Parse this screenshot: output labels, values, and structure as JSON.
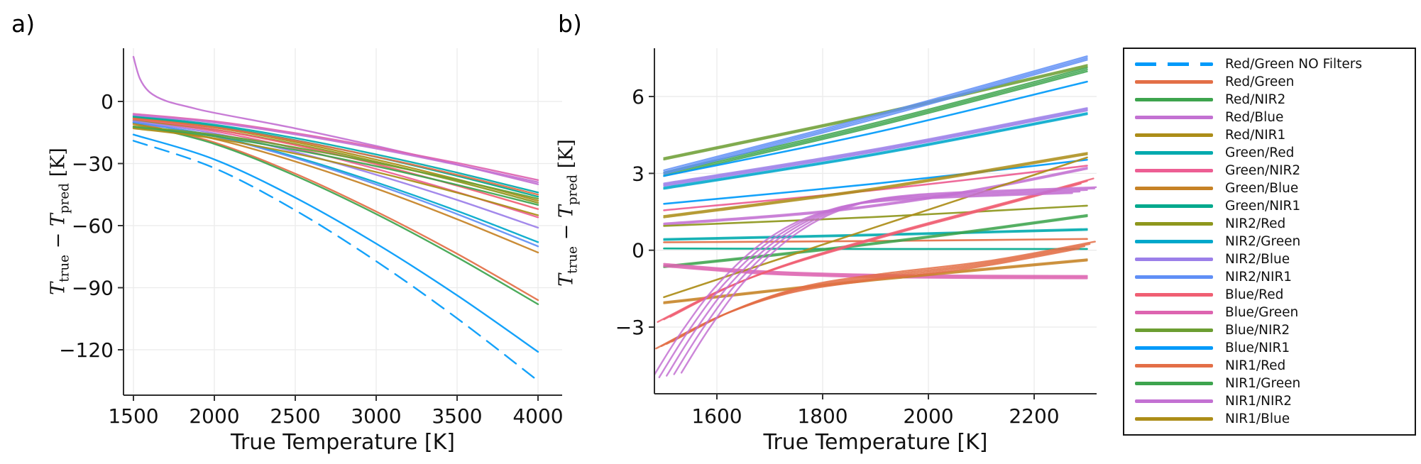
{
  "figure": {
    "panel_a_label": "a)",
    "panel_b_label": "b)",
    "background": "#ffffff",
    "grid_color": "#ebebeb",
    "spine_color": "#2e2e2e",
    "tick_color": "#333333"
  },
  "ylabel_parts": {
    "T1": "T",
    "sub1": "true",
    "op": " − ",
    "T2": "T",
    "sub2": "pred",
    "unit": " [K]"
  },
  "legend": {
    "items": [
      {
        "label": "Red/Green NO Filters",
        "color": "#009AFA",
        "dashed": true
      },
      {
        "label": "Red/Green",
        "color": "#E36F47",
        "dashed": false
      },
      {
        "label": "Red/NIR2",
        "color": "#3DA44E",
        "dashed": false
      },
      {
        "label": "Red/Blue",
        "color": "#C371D2",
        "dashed": false
      },
      {
        "label": "Red/NIR1",
        "color": "#AC8D18",
        "dashed": false
      },
      {
        "label": "Green/Red",
        "color": "#00AAAE",
        "dashed": false
      },
      {
        "label": "Green/NIR2",
        "color": "#ED5E93",
        "dashed": false
      },
      {
        "label": "Green/Blue",
        "color": "#C68225",
        "dashed": false
      },
      {
        "label": "Green/NIR1",
        "color": "#00A98D",
        "dashed": false
      },
      {
        "label": "NIR2/Red",
        "color": "#8E971D",
        "dashed": false
      },
      {
        "label": "NIR2/Green",
        "color": "#00A8CB",
        "dashed": false
      },
      {
        "label": "NIR2/Blue",
        "color": "#9B7FE9",
        "dashed": false
      },
      {
        "label": "NIR2/NIR1",
        "color": "#608FF6",
        "dashed": false
      },
      {
        "label": "Blue/Red",
        "color": "#F05F73",
        "dashed": false
      },
      {
        "label": "Blue/Green",
        "color": "#DD64B0",
        "dashed": false
      },
      {
        "label": "Blue/NIR2",
        "color": "#6C9E32",
        "dashed": false
      },
      {
        "label": "Blue/NIR1",
        "color": "#009AFA",
        "dashed": false
      },
      {
        "label": "NIR1/Red",
        "color": "#E36F47",
        "dashed": false
      },
      {
        "label": "NIR1/Green",
        "color": "#3DA44E",
        "dashed": false
      },
      {
        "label": "NIR1/NIR2",
        "color": "#C371D2",
        "dashed": false
      },
      {
        "label": "NIR1/Blue",
        "color": "#AC8D18",
        "dashed": false
      }
    ]
  },
  "chart_data": [
    {
      "id": "a",
      "type": "line",
      "title": "",
      "xlabel": "True Temperature [K]",
      "ylabel": "T_true − T_pred [K]",
      "xlim": [
        1420,
        4110
      ],
      "ylim": [
        -142,
        26
      ],
      "xticks": [
        1500,
        2000,
        2500,
        3000,
        3500,
        4000
      ],
      "xtick_labels": [
        "1500",
        "2000",
        "2500",
        "3000",
        "3500",
        "4000"
      ],
      "yticks": [
        0,
        -30,
        -60,
        -90,
        -120
      ],
      "ytick_labels": [
        "0",
        "−30",
        "−60",
        "−90",
        "−120"
      ],
      "grid": true,
      "legend_position": "none",
      "x": [
        1500,
        2000,
        2500,
        3000,
        3500,
        4000
      ],
      "series": [
        {
          "name": "Red/Green NO Filters",
          "color": "#009AFA",
          "dash": "20 12",
          "values": [
            -19,
            -32.2,
            -52.6,
            -77.2,
            -104.8,
            -135
          ]
        },
        {
          "name": "Red/Green",
          "color": "#E36F47",
          "values": [
            -10,
            -19.8,
            -34.9,
            -53.2,
            -73.6,
            -96
          ]
        },
        {
          "name": "Red/NIR2",
          "color": "#3DA44E",
          "values": [
            -10.5,
            -20.5,
            -35.9,
            -54.4,
            -75.3,
            -98
          ]
        },
        {
          "name": "Red/Blue",
          "color": "#C371D2",
          "points": [
            [
              1500,
              21.6
            ],
            [
              1540,
              11
            ],
            [
              1600,
              4.5
            ],
            [
              1700,
              0.3
            ],
            [
              1850,
              -2.8
            ],
            [
              2000,
              -5.5
            ],
            [
              2500,
              -13
            ],
            [
              3000,
              -21.5
            ],
            [
              3500,
              -30.5
            ],
            [
              4000,
              -40
            ]
          ]
        },
        {
          "name": "Red/NIR1",
          "color": "#AC8D18",
          "values": [
            -8,
            -12.6,
            -19.6,
            -28.1,
            -37.6,
            -48
          ]
        },
        {
          "name": "Green/Red",
          "color": "#00AAAE",
          "values": [
            -7,
            -11.2,
            -17.7,
            -25.6,
            -34.4,
            -44
          ]
        },
        {
          "name": "Green/NIR2",
          "color": "#ED5E93",
          "values": [
            -9,
            -14.4,
            -22.6,
            -32.6,
            -43.8,
            -56
          ]
        },
        {
          "name": "Green/Blue",
          "color": "#C68225",
          "values": [
            -11,
            -18.1,
            -29,
            -42.1,
            -56.9,
            -73
          ]
        },
        {
          "name": "Green/NIR1",
          "color": "#00A98D",
          "values": [
            -7.5,
            -11.9,
            -18.7,
            -26.8,
            -36,
            -46
          ]
        },
        {
          "name": "NIR2/Red",
          "color": "#8E971D",
          "values": [
            -9,
            -13.6,
            -20.6,
            -29.1,
            -38.6,
            -49
          ]
        },
        {
          "name": "NIR2/Green",
          "color": "#00A8CB",
          "values": [
            -10,
            -16.6,
            -26.8,
            -39.1,
            -52.9,
            -68
          ]
        },
        {
          "name": "NIR2/Blue",
          "color": "#9B7FE9",
          "values": [
            -9.5,
            -15.4,
            -24.4,
            -35.4,
            -47.6,
            -61
          ]
        },
        {
          "name": "NIR2/NIR1",
          "color": "#608FF6",
          "values": [
            -10,
            -16.8,
            -27.4,
            -40.1,
            -54.4,
            -70
          ]
        },
        {
          "name": "Blue/Red",
          "color": "#F05F73",
          "values": [
            -8.5,
            -13.5,
            -21.1,
            -30.3,
            -40.7,
            -52
          ]
        },
        {
          "name": "Blue/Green",
          "color": "#DD64B0",
          "values": [
            -6,
            -9.6,
            -15.3,
            -22.1,
            -29.7,
            -38
          ]
        },
        {
          "name": "Blue/NIR2",
          "color": "#6C9E32",
          "values": [
            -12,
            -16,
            -22.2,
            -29.6,
            -37.9,
            -47
          ]
        },
        {
          "name": "Blue/NIR1",
          "color": "#009AFA",
          "values": [
            -16,
            -28,
            -46.5,
            -68.7,
            -93.7,
            -121
          ]
        },
        {
          "name": "NIR1/Red",
          "color": "#E36F47",
          "values": [
            -8.2,
            -12.4,
            -18.9,
            -26.7,
            -35.4,
            -45
          ]
        },
        {
          "name": "NIR1/Green",
          "color": "#3DA44E",
          "values": [
            -12.5,
            -16.8,
            -23.4,
            -31.3,
            -40.3,
            -50
          ]
        },
        {
          "name": "NIR1/NIR2",
          "color": "#C371D2",
          "values": [
            -6.5,
            -10.2,
            -15.9,
            -22.8,
            -30.6,
            -39
          ]
        },
        {
          "name": "NIR1/Blue",
          "color": "#AC8D18",
          "values": [
            -13,
            -17.8,
            -25.2,
            -34.1,
            -44.1,
            -55
          ]
        }
      ]
    },
    {
      "id": "b",
      "type": "line",
      "title": "",
      "xlabel": "True Temperature [K]",
      "ylabel": "T_true − T_pred [K]",
      "xlim": [
        1482,
        2320
      ],
      "ylim": [
        -5.6,
        7.9
      ],
      "xticks": [
        1600,
        1800,
        2000,
        2200
      ],
      "xtick_labels": [
        "1600",
        "1800",
        "2000",
        "2200"
      ],
      "yticks": [
        6,
        3,
        0,
        -3
      ],
      "ytick_labels": [
        "6",
        "3",
        "0",
        "−3"
      ],
      "grid": true,
      "legend_position": "outside-right",
      "series": [
        {
          "name": "Blue/NIR2",
          "color": "#6C9E32",
          "bundle": 2,
          "spread": 0.06,
          "points": [
            [
              1500,
              3.57
            ],
            [
              1900,
              5.3
            ],
            [
              2300,
              7.2
            ]
          ]
        },
        {
          "name": "Red/NIR2",
          "color": "#3DA44E",
          "bundle": 3,
          "spread": 0.07,
          "points": [
            [
              1500,
              2.97
            ],
            [
              1900,
              4.9
            ],
            [
              2300,
              7.05
            ]
          ]
        },
        {
          "name": "NIR2/NIR1",
          "color": "#608FF6",
          "bundle": 3,
          "spread": 0.07,
          "points": [
            [
              1500,
              3.05
            ],
            [
              1900,
              5.2
            ],
            [
              2300,
              7.5
            ]
          ]
        },
        {
          "name": "Blue/NIR1",
          "color": "#009AFA",
          "points": [
            [
              1500,
              2.9
            ],
            [
              1900,
              4.6
            ],
            [
              2300,
              6.58
            ]
          ]
        },
        {
          "name": "NIR2/Blue",
          "color": "#9B7FE9",
          "bundle": 3,
          "spread": 0.05,
          "points": [
            [
              1500,
              2.56
            ],
            [
              1900,
              3.9
            ],
            [
              2300,
              5.5
            ]
          ]
        },
        {
          "name": "NIR2/Green",
          "color": "#00A8CB",
          "bundle": 2,
          "spread": 0.05,
          "points": [
            [
              1500,
              2.42
            ],
            [
              1900,
              3.75
            ],
            [
              2300,
              5.33
            ]
          ]
        },
        {
          "name": "Red/Green NO Filters",
          "color": "#009AFA",
          "points": [
            [
              1500,
              1.81
            ],
            [
              1900,
              2.6
            ],
            [
              2300,
              3.53
            ]
          ]
        },
        {
          "name": "Green/NIR2",
          "color": "#ED5E93",
          "points": [
            [
              1500,
              1.56
            ],
            [
              1900,
              2.35
            ],
            [
              2300,
              3.3
            ]
          ]
        },
        {
          "name": "Red/NIR1",
          "color": "#AC8D18",
          "bundle": 2,
          "spread": 0.06,
          "points": [
            [
              1500,
              1.31
            ],
            [
              1900,
              2.4
            ],
            [
              2300,
              3.77
            ]
          ]
        },
        {
          "name": "Red/Blue",
          "color": "#C371D2",
          "bundle": 2,
          "spread": 0.05,
          "points": [
            [
              1500,
              1.02
            ],
            [
              1800,
              1.5
            ],
            [
              2050,
              2.2
            ],
            [
              2300,
              3.2
            ]
          ]
        },
        {
          "name": "NIR2/Red",
          "color": "#8E971D",
          "points": [
            [
              1500,
              0.95
            ],
            [
              1900,
              1.3
            ],
            [
              2300,
              1.74
            ]
          ]
        },
        {
          "name": "Green/Red",
          "color": "#00AAAE",
          "bundle": 2,
          "spread": 0.04,
          "points": [
            [
              1500,
              0.42
            ],
            [
              1900,
              0.6
            ],
            [
              2300,
              0.81
            ]
          ]
        },
        {
          "name": "Red/Green",
          "color": "#E36F47",
          "points": [
            [
              1500,
              0.31
            ],
            [
              1900,
              0.36
            ],
            [
              2300,
              0.44
            ]
          ]
        },
        {
          "name": "Green/NIR1",
          "color": "#00A98D",
          "points": [
            [
              1500,
              0.07
            ],
            [
              1900,
              0.05
            ],
            [
              2300,
              0.05
            ]
          ]
        },
        {
          "name": "NIR1/Green",
          "color": "#3DA44E",
          "bundle": 2,
          "spread": 0.05,
          "points": [
            [
              1500,
              -0.64
            ],
            [
              1800,
              0.02
            ],
            [
              2050,
              0.65
            ],
            [
              2300,
              1.35
            ]
          ]
        },
        {
          "name": "Blue/Green",
          "color": "#DD64B0",
          "bundle": 3,
          "spread": 0.05,
          "points": [
            [
              1500,
              -0.58
            ],
            [
              1700,
              -0.88
            ],
            [
              1950,
              -1.02
            ],
            [
              2300,
              -1.05
            ]
          ]
        },
        {
          "name": "NIR1/Blue",
          "color": "#AC8D18",
          "points": [
            [
              1500,
              -1.83
            ],
            [
              1900,
              0.9
            ],
            [
              2300,
              3.62
            ]
          ]
        },
        {
          "name": "Green/Blue",
          "color": "#C68225",
          "bundle": 2,
          "spread": 0.05,
          "points": [
            [
              1500,
              -2.05
            ],
            [
              1900,
              -1.15
            ],
            [
              2300,
              -0.38
            ]
          ]
        },
        {
          "name": "Blue/Red",
          "color": "#F05F73",
          "bundle": 3,
          "spread": 0.1,
          "tspread": 12,
          "points": [
            [
              1500,
              -2.7
            ],
            [
              1620,
              -1.45
            ],
            [
              1750,
              -0.45
            ],
            [
              1950,
              0.75
            ],
            [
              2150,
              1.85
            ],
            [
              2300,
              2.7
            ]
          ]
        },
        {
          "name": "NIR1/Red",
          "color": "#E36F47",
          "bundle": 4,
          "spread": 0.09,
          "tspread": 10,
          "points": [
            [
              1500,
              -3.7
            ],
            [
              1620,
              -2.45
            ],
            [
              1750,
              -1.55
            ],
            [
              1900,
              -1.05
            ],
            [
              2100,
              -0.55
            ],
            [
              2300,
              0.2
            ]
          ]
        },
        {
          "name": "NIR1/NIR2",
          "color": "#C371D2",
          "bundle": 5,
          "spread": 0.06,
          "tspread": 14,
          "points": [
            [
              1505,
              -4.9
            ],
            [
              1560,
              -3.1
            ],
            [
              1630,
              -1.2
            ],
            [
              1720,
              0.5
            ],
            [
              1820,
              1.55
            ],
            [
              1950,
              2.05
            ],
            [
              2300,
              2.35
            ]
          ]
        }
      ]
    }
  ]
}
